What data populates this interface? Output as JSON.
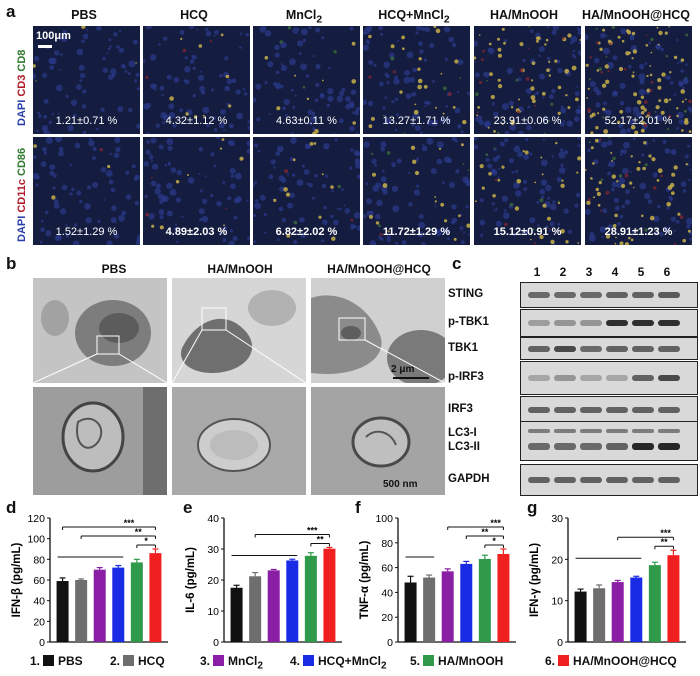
{
  "panel_letters": {
    "a": "a",
    "b": "b",
    "c": "c",
    "d": "d",
    "e": "e",
    "f": "f",
    "g": "g"
  },
  "panel_a": {
    "columns": [
      {
        "pre": "PBS",
        "sub": "",
        "post": ""
      },
      {
        "pre": "HCQ",
        "sub": "",
        "post": ""
      },
      {
        "pre": "MnCl",
        "sub": "2",
        "post": ""
      },
      {
        "pre": "HCQ+MnCl",
        "sub": "2",
        "post": ""
      },
      {
        "pre": "HA/MnOOH",
        "sub": "",
        "post": ""
      },
      {
        "pre": "HA/MnOOH@HCQ",
        "sub": "",
        "post": ""
      }
    ],
    "scale_bar": "100μm",
    "row1_label": {
      "dapi": "DAPI",
      "m1": "CD3",
      "m2": "CD8"
    },
    "row2_label": {
      "dapi": "DAPI",
      "m1": "CD11c",
      "m2": "CD86"
    },
    "row1_values": [
      "1.21±0.71 %",
      "4.32±1.12 %",
      "4.63±0.11 %",
      "13.27±1.71 %",
      "23.91±0.06 %",
      "52.17±2.01 %"
    ],
    "row2_values": [
      "1.52±1.29 %",
      "4.89±2.03 %",
      "6.82±2.02 %",
      "11.72±1.29 %",
      "15.12±0.91 %",
      "28.91±1.23 %"
    ],
    "colors": {
      "background": "#141c40",
      "blue": "#2b3a8c",
      "yellow": "#c8b04a",
      "red": "#7a2630",
      "green": "#3a6a3a"
    }
  },
  "panel_b": {
    "columns": [
      "PBS",
      "HA/MnOOH",
      "HA/MnOOH@HCQ"
    ],
    "scale_top": "2 μm",
    "scale_bottom": "500 nm"
  },
  "panel_c": {
    "lanes": [
      "1",
      "2",
      "3",
      "4",
      "5",
      "6"
    ],
    "rows": [
      {
        "label": "STING",
        "intensity": [
          0.55,
          0.55,
          0.55,
          0.6,
          0.6,
          0.65
        ]
      },
      {
        "label": "p-TBK1",
        "intensity": [
          0.25,
          0.3,
          0.3,
          0.9,
          0.9,
          0.9
        ]
      },
      {
        "label": "TBK1",
        "intensity": [
          0.6,
          0.75,
          0.55,
          0.6,
          0.6,
          0.6
        ]
      },
      {
        "label": "p-IRF3",
        "intensity": [
          0.2,
          0.3,
          0.2,
          0.2,
          0.6,
          0.75
        ]
      },
      {
        "label": "IRF3",
        "intensity": [
          0.6,
          0.6,
          0.6,
          0.6,
          0.6,
          0.6
        ]
      },
      {
        "label": "LC3-I\nLC3-II",
        "intensity": [
          0.55,
          0.55,
          0.55,
          0.6,
          0.95,
          0.95
        ]
      },
      {
        "label": "GAPDH",
        "intensity": [
          0.6,
          0.6,
          0.6,
          0.6,
          0.6,
          0.6
        ]
      }
    ]
  },
  "legend": {
    "groups": [
      {
        "num": "1.",
        "name_pre": "PBS",
        "sub": ""
      },
      {
        "num": "2.",
        "name_pre": "HCQ",
        "sub": ""
      },
      {
        "num": "3.",
        "name_pre": "MnCl",
        "sub": "2"
      },
      {
        "num": "4.",
        "name_pre": "HCQ+MnCl",
        "sub": "2"
      },
      {
        "num": "5.",
        "name_pre": "HA/MnOOH",
        "sub": ""
      },
      {
        "num": "6.",
        "name_pre": "HA/MnOOH@HCQ",
        "sub": ""
      }
    ],
    "colors": [
      "#111111",
      "#6e6e6e",
      "#8a1fa6",
      "#1a2be6",
      "#2e9a4a",
      "#f02020"
    ]
  },
  "chart_data": [
    {
      "type": "bar",
      "panel": "d",
      "categories": [
        "1",
        "2",
        "3",
        "4",
        "5",
        "6"
      ],
      "values": [
        59,
        60,
        70,
        72,
        77,
        86
      ],
      "errors": [
        3,
        1,
        2,
        2,
        3,
        4
      ],
      "ylabel": "IFN-β (pg/mL)",
      "ylim": [
        0,
        120
      ],
      "yticks": [
        0,
        20,
        40,
        60,
        80,
        100,
        120
      ],
      "significance": [
        {
          "from": 0,
          "to": 5,
          "label": "***"
        },
        {
          "from": 1,
          "to": 5,
          "label": "**"
        },
        {
          "from": 4,
          "to": 5,
          "label": "*"
        }
      ],
      "ref_line": {
        "from": 0,
        "to": 3
      }
    },
    {
      "type": "bar",
      "panel": "e",
      "categories": [
        "1",
        "2",
        "3",
        "4",
        "5",
        "6"
      ],
      "values": [
        17.5,
        21.2,
        23.1,
        26.3,
        27.8,
        30.1
      ],
      "errors": [
        0.8,
        1.2,
        0.3,
        0.4,
        1.0,
        0.4
      ],
      "ylabel": "IL-6 (pg/mL)",
      "ylim": [
        0,
        40
      ],
      "yticks": [
        0,
        10,
        20,
        30,
        40
      ],
      "significance": [
        {
          "from": 1,
          "to": 5,
          "label": "***"
        },
        {
          "from": 4,
          "to": 5,
          "label": "**"
        }
      ],
      "ref_line": {
        "from": 0,
        "to": 3
      }
    },
    {
      "type": "bar",
      "panel": "f",
      "categories": [
        "1",
        "2",
        "3",
        "4",
        "5",
        "6"
      ],
      "values": [
        48,
        52,
        57,
        63,
        67,
        71
      ],
      "errors": [
        5,
        2,
        2,
        2,
        3,
        4
      ],
      "ylabel": "TNF-α (pg/mL)",
      "ylim": [
        0,
        100
      ],
      "yticks": [
        0,
        20,
        40,
        60,
        80,
        100
      ],
      "significance": [
        {
          "from": 2,
          "to": 5,
          "label": "***"
        },
        {
          "from": 3,
          "to": 5,
          "label": "**"
        },
        {
          "from": 4,
          "to": 5,
          "label": "*"
        }
      ],
      "ref_line": {
        "from": 0,
        "to": 1
      }
    },
    {
      "type": "bar",
      "panel": "g",
      "categories": [
        "1",
        "2",
        "3",
        "4",
        "5",
        "6"
      ],
      "values": [
        12.2,
        13.0,
        14.5,
        15.6,
        18.6,
        21.0
      ],
      "errors": [
        0.6,
        0.8,
        0.4,
        0.3,
        0.7,
        1.2
      ],
      "ylabel": "IFN-γ (pg/mL)",
      "ylim": [
        0,
        30
      ],
      "yticks": [
        0,
        10,
        20,
        30
      ],
      "significance": [
        {
          "from": 2,
          "to": 5,
          "label": "***"
        },
        {
          "from": 4,
          "to": 5,
          "label": "**"
        }
      ],
      "ref_line": {
        "from": 0,
        "to": 3
      }
    }
  ]
}
